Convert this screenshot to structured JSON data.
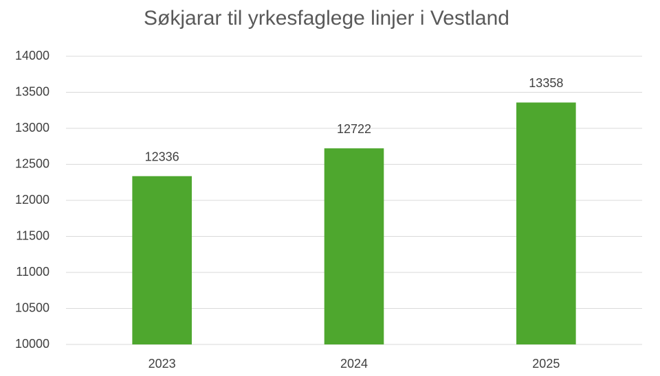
{
  "chart_data": {
    "type": "bar",
    "title": "Søkjarar til yrkesfaglege linjer i Vestland",
    "categories": [
      "2023",
      "2024",
      "2025"
    ],
    "values": [
      12336,
      12722,
      13358
    ],
    "color": "#4ea72e",
    "ylim": [
      10000,
      14000
    ],
    "yticks": [
      10000,
      10500,
      11000,
      11500,
      12000,
      12500,
      13000,
      13500,
      14000
    ],
    "grid": true,
    "data_labels": true
  }
}
